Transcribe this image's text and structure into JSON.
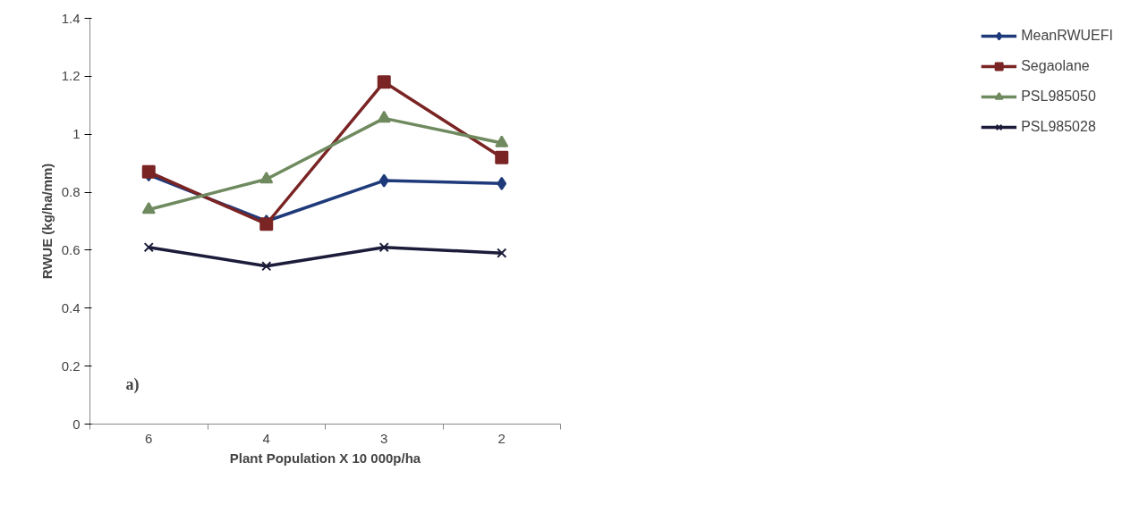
{
  "chart_data": {
    "type": "line",
    "xlabel": "Plant Population X 10 000p/ha",
    "ylabel": "RWUE (kg/ha/mm)",
    "categories": [
      "6",
      "4",
      "3",
      "2"
    ],
    "series": [
      {
        "name": "MeanRWUEFI",
        "color": "#1f3a7a",
        "marker": "diamond",
        "values": [
          0.86,
          0.7,
          0.84,
          0.83
        ]
      },
      {
        "name": "Segaolane",
        "color": "#7a2424",
        "marker": "square",
        "values": [
          0.87,
          0.69,
          1.18,
          0.92
        ]
      },
      {
        "name": "PSL985050",
        "color": "#6f8a5f",
        "marker": "triangle",
        "values": [
          0.74,
          0.845,
          1.055,
          0.97
        ]
      },
      {
        "name": "PSL985028",
        "color": "#1c1c3a",
        "marker": "cross",
        "values": [
          0.61,
          0.545,
          0.61,
          0.59
        ]
      }
    ],
    "ylim": [
      0,
      1.4
    ],
    "yticks": [
      0,
      0.2,
      0.4,
      0.6,
      0.8,
      1,
      1.2,
      1.4
    ],
    "grid": false,
    "legend": "right",
    "line_style": "solid",
    "annotations": [
      "a)"
    ]
  }
}
